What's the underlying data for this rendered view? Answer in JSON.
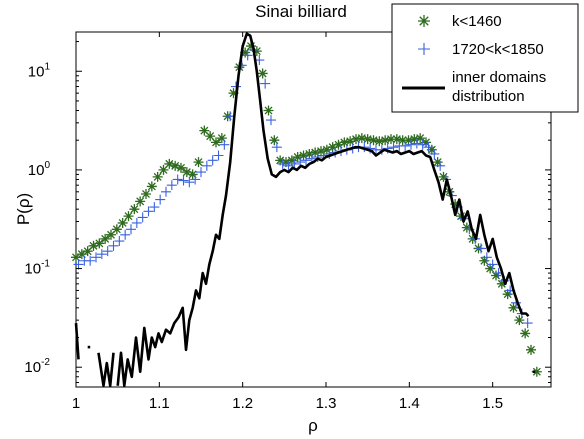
{
  "chart_data": {
    "type": "line",
    "title": "Sinai billiard",
    "xlabel": "ρ",
    "ylabel": "P(ρ)",
    "xlim": [
      1.0,
      1.57
    ],
    "ylim": [
      0.0063,
      25
    ],
    "yscale": "log",
    "grid": false,
    "legend_position": "top-right",
    "x_ticks": [
      1,
      1.1,
      1.2,
      1.3,
      1.4,
      1.5
    ],
    "x_tick_labels": [
      "1",
      "1.1",
      "1.2",
      "1.3",
      "1.4",
      "1.5"
    ],
    "y_ticks": [
      0.01,
      0.1,
      1,
      10
    ],
    "y_tick_labels": [
      {
        "base": "10",
        "exp": "-2"
      },
      {
        "base": "10",
        "exp": "-1"
      },
      {
        "base": "10",
        "exp": "0"
      },
      {
        "base": "10",
        "exp": "1"
      }
    ],
    "series": [
      {
        "name": "k<1460",
        "marker": "asterisk",
        "color": "#2e6b1e",
        "x": [
          1.0,
          1.007,
          1.014,
          1.021,
          1.028,
          1.035,
          1.042,
          1.049,
          1.056,
          1.063,
          1.07,
          1.077,
          1.084,
          1.091,
          1.098,
          1.105,
          1.112,
          1.119,
          1.126,
          1.133,
          1.14,
          1.147,
          1.154,
          1.161,
          1.168,
          1.175,
          1.182,
          1.189,
          1.196,
          1.203,
          1.21,
          1.217,
          1.224,
          1.231,
          1.238,
          1.245,
          1.252,
          1.259,
          1.266,
          1.273,
          1.28,
          1.287,
          1.294,
          1.301,
          1.308,
          1.315,
          1.322,
          1.329,
          1.336,
          1.343,
          1.35,
          1.357,
          1.364,
          1.371,
          1.378,
          1.385,
          1.392,
          1.399,
          1.406,
          1.413,
          1.42,
          1.427,
          1.434,
          1.441,
          1.448,
          1.455,
          1.462,
          1.469,
          1.476,
          1.483,
          1.49,
          1.497,
          1.504,
          1.511,
          1.518,
          1.525,
          1.532,
          1.539,
          1.546,
          1.553
        ],
        "y": [
          0.13,
          0.14,
          0.15,
          0.17,
          0.18,
          0.2,
          0.22,
          0.25,
          0.29,
          0.34,
          0.4,
          0.48,
          0.57,
          0.68,
          0.85,
          1.0,
          1.15,
          1.1,
          1.05,
          0.95,
          0.9,
          1.2,
          2.5,
          2.2,
          1.9,
          2.1,
          3.5,
          6.0,
          11.0,
          15.5,
          18.0,
          16.0,
          9.5,
          4.0,
          2.0,
          1.25,
          1.2,
          1.25,
          1.35,
          1.4,
          1.45,
          1.5,
          1.55,
          1.6,
          1.7,
          1.8,
          1.9,
          1.95,
          2.05,
          2.1,
          2.05,
          2.0,
          1.95,
          2.0,
          2.05,
          2.05,
          2.0,
          2.0,
          2.05,
          2.1,
          1.9,
          1.6,
          1.2,
          0.85,
          0.6,
          0.45,
          0.34,
          0.26,
          0.2,
          0.16,
          0.12,
          0.1,
          0.085,
          0.07,
          0.055,
          0.04,
          0.03,
          0.022,
          0.015,
          0.009
        ]
      },
      {
        "name": "1720<k<1850",
        "marker": "plus",
        "color": "#3a62e0",
        "x": [
          1.003,
          1.01,
          1.017,
          1.024,
          1.031,
          1.038,
          1.045,
          1.052,
          1.059,
          1.066,
          1.073,
          1.08,
          1.087,
          1.094,
          1.101,
          1.108,
          1.115,
          1.122,
          1.129,
          1.136,
          1.143,
          1.15,
          1.157,
          1.164,
          1.171,
          1.178,
          1.185,
          1.192,
          1.199,
          1.206,
          1.213,
          1.22,
          1.227,
          1.234,
          1.241,
          1.248,
          1.255,
          1.262,
          1.269,
          1.276,
          1.283,
          1.29,
          1.297,
          1.304,
          1.311,
          1.318,
          1.325,
          1.332,
          1.339,
          1.346,
          1.353,
          1.36,
          1.367,
          1.374,
          1.381,
          1.388,
          1.395,
          1.402,
          1.409,
          1.416,
          1.423,
          1.43,
          1.437,
          1.444,
          1.451,
          1.458,
          1.465,
          1.472,
          1.479,
          1.486,
          1.493,
          1.5,
          1.507,
          1.514,
          1.521,
          1.528,
          1.535,
          1.542
        ],
        "y": [
          0.11,
          0.12,
          0.12,
          0.13,
          0.14,
          0.15,
          0.17,
          0.19,
          0.22,
          0.25,
          0.29,
          0.33,
          0.38,
          0.42,
          0.5,
          0.6,
          0.7,
          0.8,
          0.78,
          0.75,
          0.8,
          0.95,
          1.1,
          1.25,
          1.4,
          1.8,
          3.5,
          7.0,
          11.5,
          14.5,
          16.5,
          13.0,
          7.5,
          3.2,
          1.7,
          1.15,
          1.1,
          1.15,
          1.2,
          1.25,
          1.3,
          1.35,
          1.4,
          1.45,
          1.5,
          1.55,
          1.6,
          1.65,
          1.7,
          1.7,
          1.65,
          1.6,
          1.6,
          1.65,
          1.7,
          1.75,
          1.75,
          1.8,
          1.85,
          1.8,
          1.7,
          1.45,
          1.1,
          0.8,
          0.55,
          0.42,
          0.32,
          0.25,
          0.2,
          0.16,
          0.13,
          0.11,
          0.09,
          0.075,
          0.06,
          0.045,
          0.035,
          0.028
        ]
      },
      {
        "name": "inner domains distribution",
        "marker": "line",
        "color": "#000000",
        "segments": [
          {
            "x": [
              1.0,
              1.003
            ],
            "y": [
              0.028,
              0.012
            ]
          },
          {
            "x": [
              1.027,
              1.033,
              1.037,
              1.041,
              1.045
            ],
            "y": [
              0.014,
              0.0065,
              0.011,
              0.0065,
              0.014
            ]
          },
          {
            "x": [
              1.05,
              1.054,
              1.058,
              1.062,
              1.067,
              1.072,
              1.077,
              1.082,
              1.087,
              1.091,
              1.095,
              1.099,
              1.103,
              1.108,
              1.113,
              1.118,
              1.123,
              1.128,
              1.132,
              1.136,
              1.14,
              1.144,
              1.148,
              1.152,
              1.156,
              1.16,
              1.164,
              1.168,
              1.172,
              1.176,
              1.18,
              1.185,
              1.19,
              1.195,
              1.2,
              1.205,
              1.209,
              1.213,
              1.217,
              1.221,
              1.225,
              1.23,
              1.235,
              1.24,
              1.245,
              1.25,
              1.255,
              1.26,
              1.265,
              1.27,
              1.275,
              1.28,
              1.285,
              1.29,
              1.295,
              1.3,
              1.305,
              1.31,
              1.315,
              1.32,
              1.325,
              1.33,
              1.335,
              1.34,
              1.345,
              1.35,
              1.355,
              1.36,
              1.365,
              1.37,
              1.375,
              1.38,
              1.385,
              1.39,
              1.395,
              1.4,
              1.405,
              1.41,
              1.415,
              1.42,
              1.425,
              1.43,
              1.435,
              1.44,
              1.445,
              1.45,
              1.455,
              1.46,
              1.465,
              1.47,
              1.475,
              1.48,
              1.485,
              1.49,
              1.495,
              1.5,
              1.505,
              1.51,
              1.515,
              1.52,
              1.525,
              1.53,
              1.535,
              1.54,
              1.543
            ],
            "y": [
              0.0065,
              0.014,
              0.0065,
              0.012,
              0.008,
              0.02,
              0.009,
              0.025,
              0.012,
              0.02,
              0.016,
              0.022,
              0.018,
              0.024,
              0.022,
              0.028,
              0.032,
              0.04,
              0.015,
              0.03,
              0.04,
              0.06,
              0.05,
              0.09,
              0.07,
              0.11,
              0.15,
              0.22,
              0.2,
              0.35,
              0.55,
              1.2,
              3.5,
              9.0,
              18.0,
              24.0,
              23.0,
              17.0,
              10.0,
              5.0,
              2.5,
              1.3,
              0.9,
              0.85,
              0.95,
              1.0,
              0.95,
              1.05,
              1.0,
              1.1,
              1.05,
              1.15,
              1.2,
              1.3,
              1.25,
              1.35,
              1.4,
              1.45,
              1.5,
              1.55,
              1.6,
              1.65,
              1.7,
              1.7,
              1.65,
              1.6,
              1.55,
              1.4,
              1.5,
              1.6,
              1.55,
              1.5,
              1.55,
              1.45,
              1.5,
              1.55,
              1.45,
              1.5,
              1.55,
              1.4,
              1.35,
              1.0,
              0.75,
              0.5,
              0.8,
              0.55,
              0.35,
              0.5,
              0.3,
              0.38,
              0.25,
              0.2,
              0.35,
              0.22,
              0.15,
              0.2,
              0.13,
              0.1,
              0.07,
              0.09,
              0.06,
              0.045,
              0.035,
              0.035,
              0.033
            ]
          },
          {
            "x": [
              1.548,
              1.551
            ],
            "y": [
              0.009,
              0.009
            ]
          },
          {
            "x": [
              1.014,
              1.017
            ],
            "y": [
              0.016,
              0.016
            ]
          }
        ]
      }
    ]
  }
}
